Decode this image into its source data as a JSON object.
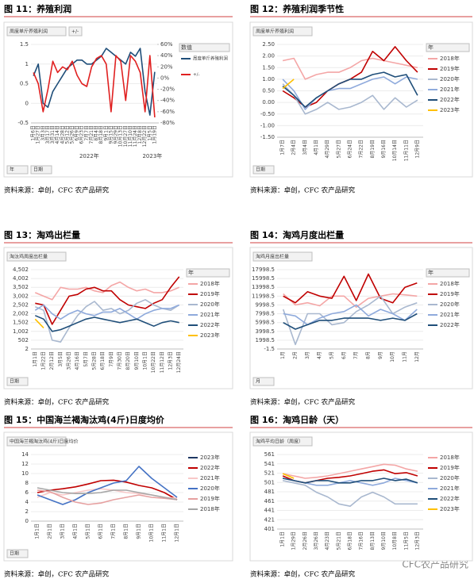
{
  "chart_data": [
    {
      "type": "line",
      "title": "图 11：养殖利润",
      "subtitle": "周度单斤养殖利润",
      "legend_title": "数值",
      "source": "资料来源：卓创，CFC 农产品研究",
      "filters": [
        "年",
        "日期"
      ],
      "top_button": "+/-",
      "categories": [
        "1月6日",
        "1月27日",
        "3月3日",
        "3月17日",
        "3月31日",
        "4月14日",
        "4月28日",
        "5月12日",
        "5月26日",
        "6月9日",
        "6月23日",
        "7月7日",
        "7月21日",
        "8月4日",
        "8月18日",
        "9月1日",
        "9月15日",
        "9月29日",
        "10月13日",
        "10月27日",
        "11月10日",
        "11月24日",
        "12月8日",
        "12月22日",
        "1月5日",
        "1月19日"
      ],
      "x_group_labels": [
        "2022年",
        "2023年"
      ],
      "ylim": [
        -0.5,
        1.5
      ],
      "yticks": [
        1.5,
        1,
        0.5,
        0,
        -0.5
      ],
      "y2lim": [
        -80,
        60
      ],
      "y2ticks": [
        {
          "value": 60,
          "label": "60%"
        },
        {
          "value": 40,
          "label": "40%"
        },
        {
          "value": 20,
          "label": "20%"
        },
        {
          "value": 0,
          "label": "0%"
        },
        {
          "value": -20,
          "label": "-20%"
        },
        {
          "value": -40,
          "label": "-40%"
        },
        {
          "value": -60,
          "label": "-60%"
        },
        {
          "value": -80,
          "label": "-80%"
        }
      ],
      "series": [
        {
          "name": "周度单斤养殖利润",
          "color": "#1f4e79",
          "values": [
            0.7,
            1.0,
            0.0,
            -0.1,
            0.3,
            0.5,
            0.7,
            0.9,
            1.0,
            1.1,
            1.1,
            1.0,
            1.0,
            1.1,
            1.2,
            1.4,
            1.3,
            1.2,
            1.1,
            1.0,
            1.3,
            1.2,
            1.4,
            0.3,
            -0.3,
            0.8
          ]
        },
        {
          "name": "+/-",
          "color": "#e02020",
          "axis": "y2",
          "values": [
            10,
            -10,
            -60,
            -20,
            30,
            10,
            20,
            15,
            30,
            5,
            -10,
            -15,
            20,
            35,
            40,
            25,
            -60,
            40,
            30,
            -40,
            40,
            30,
            10,
            -60,
            40,
            -70
          ]
        }
      ]
    },
    {
      "type": "line",
      "title": "图 12：养殖利润季节性",
      "subtitle": "周度单斤养殖利润",
      "legend_title": "年",
      "source": "资料来源：卓创，CFC 农产品研究",
      "filters": [
        "日期"
      ],
      "categories": [
        "1月7日",
        "2月4日",
        "3月4日",
        "4月1日",
        "4月29日",
        "5月27日",
        "6月24日",
        "7月22日",
        "8月19日",
        "9月16日",
        "10月14日",
        "11月11日",
        "12月9日"
      ],
      "ylim": [
        -1.5,
        2.5
      ],
      "yticks": [
        {
          "value": 2.5,
          "label": "2.50"
        },
        {
          "value": 2,
          "label": "2.00"
        },
        {
          "value": 1.5,
          "label": "1.50"
        },
        {
          "value": 1,
          "label": "1.00"
        },
        {
          "value": 0.5,
          "label": "0.50"
        },
        {
          "value": 0,
          "label": "0.00"
        },
        {
          "value": -0.5,
          "label": "-0.50"
        },
        {
          "value": -1,
          "label": "-1.00"
        },
        {
          "value": -1.5,
          "label": "-1.50"
        }
      ],
      "series": [
        {
          "name": "2018年",
          "color": "#f4a6a6",
          "values": [
            1.8,
            1.9,
            1.0,
            1.2,
            1.3,
            1.3,
            1.5,
            1.8,
            1.9,
            1.8,
            1.7,
            1.6,
            1.5
          ]
        },
        {
          "name": "2019年",
          "color": "#c00000",
          "values": [
            0.5,
            0.2,
            -0.2,
            0.0,
            0.5,
            0.8,
            1.0,
            1.3,
            2.2,
            1.8,
            2.4,
            1.8,
            1.3
          ]
        },
        {
          "name": "2020年",
          "color": "#a9b8cf",
          "values": [
            0.8,
            0.3,
            -0.5,
            -0.3,
            0.0,
            -0.3,
            -0.2,
            0.0,
            0.3,
            -0.3,
            0.2,
            -0.2,
            0.1
          ]
        },
        {
          "name": "2021年",
          "color": "#8faadc",
          "values": [
            1.0,
            0.5,
            -0.3,
            0.2,
            0.5,
            0.6,
            0.6,
            0.8,
            1.0,
            1.1,
            0.8,
            1.1,
            1.0
          ]
        },
        {
          "name": "2022年",
          "color": "#1f4e79",
          "values": [
            0.7,
            0.3,
            -0.2,
            0.2,
            0.5,
            0.8,
            1.0,
            1.0,
            1.2,
            1.3,
            1.1,
            1.2,
            0.3
          ]
        },
        {
          "name": "2023年",
          "color": "#ffc000",
          "values": [
            0.6,
            1.0,
            null,
            null,
            null,
            null,
            null,
            null,
            null,
            null,
            null,
            null,
            null
          ]
        }
      ]
    },
    {
      "type": "line",
      "title": "图 13：淘鸡出栏量",
      "subtitle": "淘汰鸡周度出栏量",
      "legend_title": "年",
      "source": "资料来源：卓创，CFC 农产品研究",
      "filters": [
        "日期"
      ],
      "categories": [
        "1月1日",
        "1月22日",
        "2月12日",
        "3月5日",
        "3月26日",
        "4月16日",
        "5月7日",
        "5月28日",
        "6月18日",
        "7月9日",
        "7月30日",
        "8月20日",
        "9月10日",
        "10月1日",
        "10月22日",
        "11月12日",
        "12月3日",
        "12月24日"
      ],
      "ylim": [
        2,
        4502
      ],
      "yticks": [
        {
          "value": 4502,
          "label": "4,502"
        },
        {
          "value": 4002,
          "label": "4,002"
        },
        {
          "value": 3502,
          "label": "3,502"
        },
        {
          "value": 3002,
          "label": "3,002"
        },
        {
          "value": 2502,
          "label": "2,502"
        },
        {
          "value": 2002,
          "label": "2,002"
        },
        {
          "value": 1502,
          "label": "1,502"
        },
        {
          "value": 1002,
          "label": "1,002"
        },
        502,
        2
      ],
      "series": [
        {
          "name": "2018年",
          "color": "#f4a6a6",
          "values": [
            3200,
            3000,
            2800,
            3500,
            3400,
            3400,
            3500,
            3300,
            3200,
            3600,
            3800,
            3500,
            3300,
            3400,
            3200,
            3200,
            3300,
            3500
          ]
        },
        {
          "name": "2019年",
          "color": "#c00000",
          "values": [
            2600,
            2500,
            1400,
            2200,
            3000,
            3100,
            3400,
            3500,
            3300,
            3300,
            2800,
            2500,
            2400,
            2300,
            2600,
            2800,
            3500,
            4100
          ]
        },
        {
          "name": "2020年",
          "color": "#a9b8cf",
          "values": [
            2400,
            2200,
            500,
            400,
            1200,
            1900,
            2400,
            2700,
            2200,
            2300,
            2000,
            2200,
            2600,
            2800,
            2500,
            2300,
            2200,
            2500
          ]
        },
        {
          "name": "2021年",
          "color": "#8faadc",
          "values": [
            2200,
            2500,
            2000,
            1700,
            2000,
            2200,
            2000,
            1900,
            2100,
            2100,
            2300,
            2000,
            1700,
            2000,
            2200,
            2300,
            2300,
            2500
          ]
        },
        {
          "name": "2022年",
          "color": "#1f4e79",
          "values": [
            1900,
            1700,
            1000,
            1100,
            1300,
            1500,
            1700,
            1800,
            1700,
            1600,
            1500,
            1600,
            1700,
            1500,
            1300,
            1500,
            1600,
            1500
          ]
        },
        {
          "name": "2023年",
          "color": "#ffc000",
          "values": [
            1700,
            1200,
            null,
            null,
            null,
            null,
            null,
            null,
            null,
            null,
            null,
            null,
            null,
            null,
            null,
            null,
            null,
            null
          ]
        }
      ]
    },
    {
      "type": "line",
      "title": "图 14：淘鸡月度出栏量",
      "subtitle": "淘鸡月度出栏量",
      "legend_title": "年",
      "source": "资料来源：卓创，CFC 农产品研究",
      "filters": [
        "月"
      ],
      "categories": [
        "1月",
        "2月",
        "3月",
        "4月",
        "5月",
        "6月",
        "7月",
        "8月",
        "9月",
        "10月",
        "11月",
        "12月"
      ],
      "ylim": [
        -1.5,
        17998.5
      ],
      "yticks": [
        17998.5,
        15998.5,
        13998.5,
        11998.5,
        9998.5,
        7998.5,
        5998.5,
        3998.5,
        1998.5,
        -1.5
      ],
      "series": [
        {
          "name": "2018年",
          "color": "#f4a6a6",
          "values": [
            12500,
            10000,
            10500,
            9800,
            12000,
            12000,
            9500,
            11500,
            12000,
            12500,
            12300,
            12000
          ]
        },
        {
          "name": "2019年",
          "color": "#c00000",
          "values": [
            12000,
            10500,
            13000,
            12000,
            11500,
            16500,
            11000,
            17000,
            11500,
            10500,
            14000,
            15000
          ]
        },
        {
          "name": "2020年",
          "color": "#a9b8cf",
          "values": [
            9000,
            1000,
            8000,
            8000,
            5500,
            6000,
            8500,
            10000,
            12000,
            8000,
            9500,
            10500
          ]
        },
        {
          "name": "2021年",
          "color": "#8faadc",
          "values": [
            8000,
            7500,
            5500,
            7000,
            8000,
            8500,
            10000,
            7500,
            9000,
            8000,
            6500,
            9000
          ]
        },
        {
          "name": "2022年",
          "color": "#1f4e79",
          "values": [
            6000,
            4500,
            5500,
            6500,
            6500,
            7000,
            7000,
            7000,
            6500,
            7000,
            6500,
            8000
          ]
        }
      ]
    },
    {
      "type": "line",
      "title": "图 15：中国海兰褐淘汰鸡(4斤)日度均价",
      "subtitle": "中国海兰褐淘汰鸡(4斤)日度均价",
      "source": "资料来源：卓创，CFC 农产品研究",
      "filters": [
        "日期"
      ],
      "categories": [
        "1月1日",
        "2月1日",
        "3月1日",
        "4月1日",
        "5月1日",
        "6月1日",
        "7月1日",
        "8月1日",
        "9月1日",
        "10月1日",
        "11月1日",
        "12月1日"
      ],
      "ylim": [
        0,
        14
      ],
      "yticks": [
        0,
        2,
        4,
        6,
        8,
        10,
        12,
        14
      ],
      "series": [
        {
          "name": "2023年",
          "color": "#1f3864",
          "values": [
            4.5,
            null,
            null,
            null,
            null,
            null,
            null,
            null,
            null,
            null,
            null,
            null
          ]
        },
        {
          "name": "2022年",
          "color": "#c00000",
          "values": [
            6,
            6.5,
            6.8,
            7.2,
            7.8,
            8.5,
            8.6,
            8.2,
            7.5,
            7.0,
            6.0,
            4.5
          ]
        },
        {
          "name": "2021年",
          "color": "#f8c8c8",
          "values": [
            5,
            6,
            5.5,
            6,
            6.5,
            6.8,
            6.5,
            6,
            5.8,
            5.5,
            5.0,
            4.8
          ]
        },
        {
          "name": "2020年",
          "color": "#4472c4",
          "values": [
            5.5,
            4.5,
            3.5,
            4.5,
            6,
            7,
            8,
            8.5,
            11.5,
            9,
            7,
            5
          ]
        },
        {
          "name": "2019年",
          "color": "#e6a0a0",
          "values": [
            6.5,
            6.2,
            5,
            4,
            3.5,
            3.8,
            4.5,
            5,
            5.5,
            5,
            4.8,
            4.5
          ]
        },
        {
          "name": "2018年",
          "color": "#a6a6a6",
          "values": [
            7,
            6.5,
            6,
            5.8,
            5.8,
            6,
            6.5,
            6.5,
            6,
            5.5,
            5,
            4.5
          ]
        }
      ]
    },
    {
      "type": "line",
      "title": "图 16：淘鸡日龄（天）",
      "subtitle": "淘鸡平均日龄（周度）",
      "source": "资料来源：卓创，CFC 农产品研究",
      "filters": [],
      "categories": [
        "1月1日",
        "1月29日",
        "2月26日",
        "3月26日",
        "4月23日",
        "5月21日",
        "6月18日",
        "7月16日",
        "8月13日",
        "9月10日",
        "10月8日",
        "11月5日",
        "12月3日"
      ],
      "ylim": [
        401,
        561
      ],
      "yticks": [
        561,
        541,
        521,
        501,
        481,
        461,
        441,
        421,
        401
      ],
      "series": [
        {
          "name": "2018年",
          "color": "#f4a6a6",
          "values": [
            520,
            515,
            510,
            512,
            515,
            520,
            525,
            530,
            535,
            540,
            538,
            530,
            525
          ]
        },
        {
          "name": "2019年",
          "color": "#c00000",
          "values": [
            515,
            505,
            500,
            505,
            510,
            512,
            515,
            520,
            525,
            528,
            520,
            522,
            515
          ]
        },
        {
          "name": "2020年",
          "color": "#a9b8cf",
          "values": [
            505,
            500,
            495,
            480,
            470,
            455,
            450,
            470,
            480,
            470,
            455,
            455,
            455
          ]
        },
        {
          "name": "2021年",
          "color": "#8faadc",
          "values": [
            510,
            505,
            500,
            495,
            495,
            500,
            505,
            500,
            495,
            500,
            510,
            505,
            500
          ]
        },
        {
          "name": "2022年",
          "color": "#1f4e79",
          "values": [
            510,
            505,
            500,
            505,
            505,
            500,
            500,
            505,
            505,
            510,
            505,
            508,
            500
          ]
        },
        {
          "name": "2023年",
          "color": "#ffc000",
          "values": [
            520,
            510,
            null,
            null,
            null,
            null,
            null,
            null,
            null,
            null,
            null,
            null,
            null
          ]
        }
      ]
    }
  ],
  "watermark": "CFC农产品研究"
}
